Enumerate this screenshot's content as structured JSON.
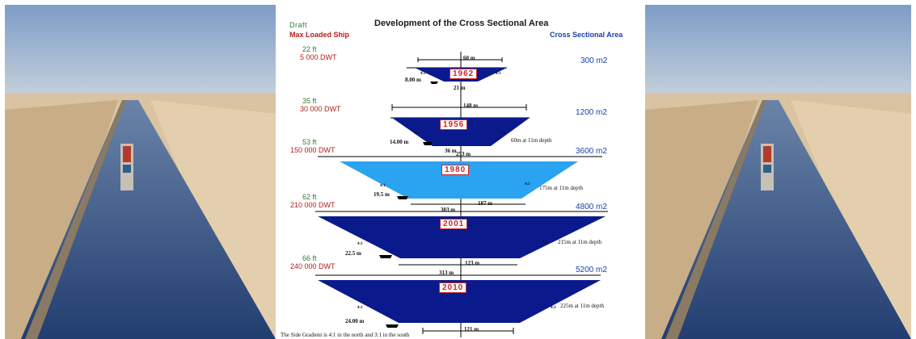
{
  "header": {
    "draft_label": "Draft",
    "ship_label": "Max Loaded Ship",
    "title": "Development of the Cross Sectional Area",
    "area_label": "Cross Sectional Area"
  },
  "stages": [
    {
      "year": "1962",
      "draft": "22 ft",
      "dwt": "5 000 DWT",
      "area": "300 m2",
      "top_width": "60 m",
      "bottom_width": "21 m",
      "side": "8.00 m",
      "slope": "4:1",
      "slope_right": "4:1",
      "depth_note": ""
    },
    {
      "year": "1956",
      "draft": "35 ft",
      "dwt": "30 000 DWT",
      "area": "1200 m2",
      "top_width": "148 m",
      "bottom_width": "36 m",
      "side": "14.00 m",
      "slope": "4:1",
      "slope_right": "4:1",
      "depth_note": "60m  at 11m depth"
    },
    {
      "year": "1980",
      "draft": "53 ft",
      "dwt": "150 000 DWT",
      "area": "3600 m2",
      "top_width": "253 m",
      "bottom_width": "187 m",
      "side": "19.5 m",
      "slope": "4:1",
      "slope_right": "4:1",
      "depth_note": "175m  at 11m depth"
    },
    {
      "year": "2001",
      "draft": "62 ft",
      "dwt": "210 000 DWT",
      "area": "4800 m2",
      "top_width": "303 m",
      "bottom_width": "123 m",
      "side": "22.5 m",
      "slope": "4:1",
      "slope_right": "4:1",
      "depth_note": "215m  at 11m depth"
    },
    {
      "year": "2010",
      "draft": "66 ft",
      "dwt": "240 000 DWT",
      "area": "5200 m2",
      "top_width": "313 m",
      "bottom_width": "121 m",
      "side": "24.00 m",
      "slope": "4:1",
      "slope_right": "4:1",
      "depth_note": "225m  at 11m depth"
    }
  ],
  "footnote": "The Side Gradient is 4:1 in the north and 3:1 in the south",
  "colors": {
    "dark_blue": "#0a1a8c",
    "light_blue": "#2aa3f0",
    "draft_green": "#2e7d32",
    "dwt_red": "#b71c1c",
    "area_blue": "#1a3fa8"
  }
}
